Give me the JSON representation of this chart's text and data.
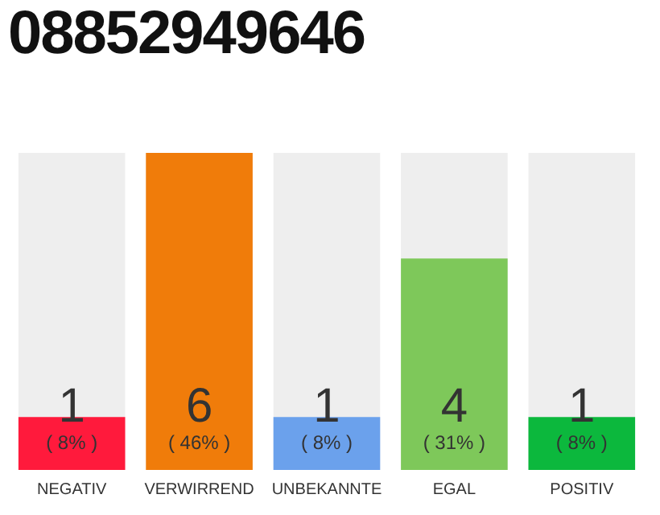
{
  "chart_data": {
    "type": "bar",
    "title": "08852949646",
    "categories": [
      "NEGATIV",
      "VERWIRREND",
      "UNBEKANNTE",
      "EGAL",
      "POSITIV"
    ],
    "values": [
      1,
      6,
      1,
      4,
      1
    ],
    "colors": [
      "#ff1a3c",
      "#f07c0a",
      "#6ba1ec",
      "#7ec85a",
      "#0cb83d"
    ],
    "value_labels": [
      "1\n( 8% )",
      "6\n( 46% )",
      "1\n( 8% )",
      "4\n( 31% )",
      "1\n( 8% )"
    ],
    "legend": false,
    "grid": false
  }
}
